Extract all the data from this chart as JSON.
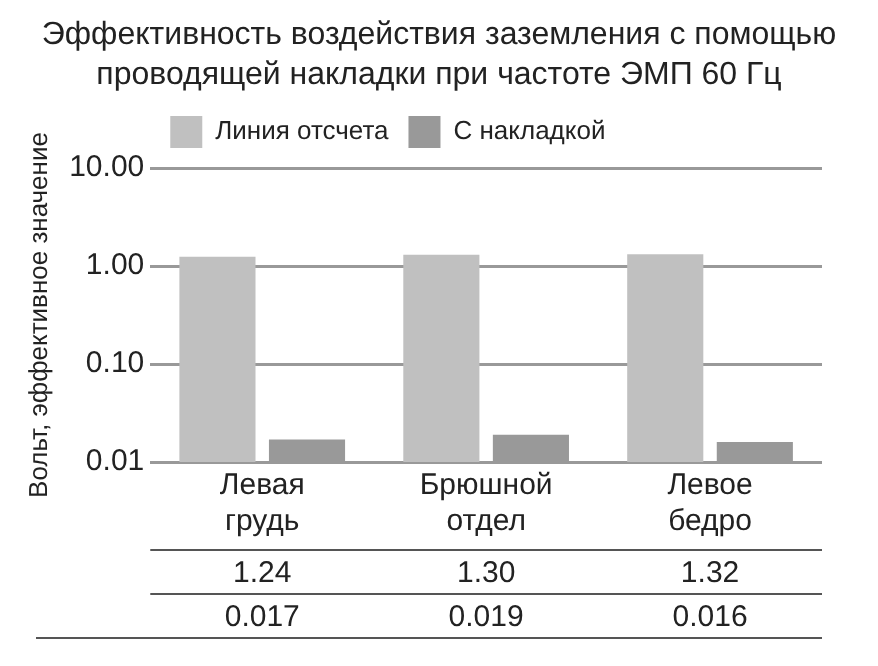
{
  "chart_data": {
    "type": "bar",
    "title": "Эффективность воздействия заземления с помощью проводящей накладки при частоте ЭМП 60 Гц",
    "ylabel": "Вольт, эффективное значение",
    "categories": [
      "Левая грудь",
      "Брюшной отдел",
      "Левое бедро"
    ],
    "series": [
      {
        "name": "Линия отсчета",
        "color": "#c0c0c0",
        "values": [
          1.24,
          1.3,
          1.32
        ],
        "value_labels": [
          "1.24",
          "1.30",
          "1.32"
        ]
      },
      {
        "name": "С накладкой",
        "color": "#999999",
        "values": [
          0.017,
          0.019,
          0.016
        ],
        "value_labels": [
          "0.017",
          "0.019",
          "0.016"
        ]
      }
    ],
    "log": true,
    "ylim": [
      0.01,
      10
    ],
    "yticks": [
      {
        "value": 0.01,
        "label": "0.01"
      },
      {
        "value": 0.1,
        "label": "0.10"
      },
      {
        "value": 1,
        "label": "1.00"
      },
      {
        "value": 10,
        "label": "10.00"
      }
    ],
    "grid": "y",
    "legend": "top left"
  }
}
